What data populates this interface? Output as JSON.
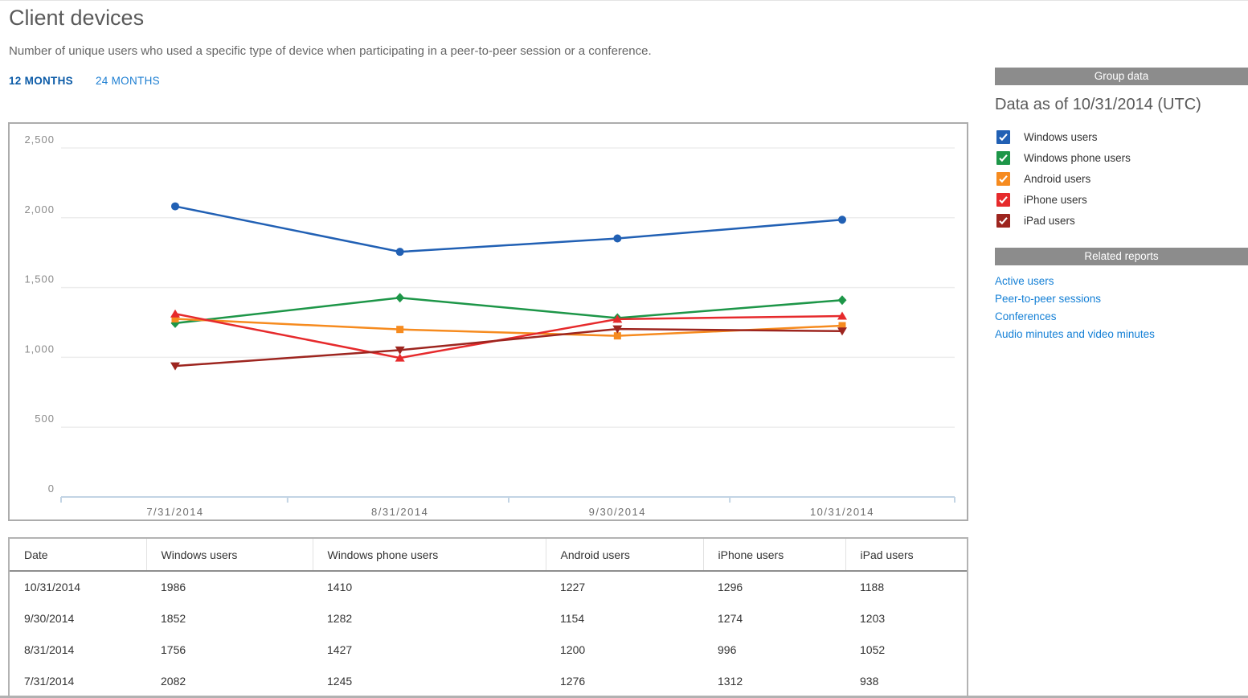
{
  "page": {
    "title": "Client devices",
    "subtitle": "Number of unique users who used a specific type of device when participating in a peer-to-peer session or a conference.",
    "tabs": [
      {
        "label": "12 MONTHS",
        "active": true
      },
      {
        "label": "24 MONTHS",
        "active": false
      }
    ]
  },
  "sidebar": {
    "group_data_header": "Group data",
    "data_as_of": "Data as of 10/31/2014 (UTC)",
    "legend": [
      {
        "label": "Windows users",
        "color": "#2160b4",
        "checked": true
      },
      {
        "label": "Windows phone users",
        "color": "#1d9648",
        "checked": true
      },
      {
        "label": "Android users",
        "color": "#f68b1f",
        "checked": true
      },
      {
        "label": "iPhone users",
        "color": "#e62a2c",
        "checked": true
      },
      {
        "label": "iPad users",
        "color": "#9d251f",
        "checked": true
      }
    ],
    "related_reports_header": "Related reports",
    "related_reports": [
      "Active users",
      "Peer-to-peer sessions",
      "Conferences",
      "Audio minutes and video minutes"
    ]
  },
  "chart_data": {
    "type": "line",
    "title": "Client devices",
    "x": [
      "7/31/2014",
      "8/31/2014",
      "9/30/2014",
      "10/31/2014"
    ],
    "x_day_offsets": [
      0,
      31,
      61,
      92
    ],
    "series": [
      {
        "name": "Windows users",
        "color": "#2160b4",
        "marker": "circle",
        "values": [
          2082,
          1756,
          1852,
          1986
        ]
      },
      {
        "name": "Windows phone users",
        "color": "#1d9648",
        "marker": "diamond",
        "values": [
          1245,
          1427,
          1282,
          1410
        ]
      },
      {
        "name": "Android users",
        "color": "#f68b1f",
        "marker": "square",
        "values": [
          1276,
          1200,
          1154,
          1227
        ]
      },
      {
        "name": "iPhone users",
        "color": "#e62a2c",
        "marker": "triangle-up",
        "values": [
          1312,
          996,
          1274,
          1296
        ]
      },
      {
        "name": "iPad users",
        "color": "#9d251f",
        "marker": "triangle-down",
        "values": [
          938,
          1052,
          1203,
          1188
        ]
      }
    ],
    "ylim": [
      0,
      2500
    ],
    "y_ticks": [
      0,
      500,
      1000,
      1500,
      2000,
      2500
    ],
    "y_tick_labels": [
      "0",
      "500",
      "1,000",
      "1,500",
      "2,000",
      "2,500"
    ],
    "grid": true,
    "legend_position": "right-panel"
  },
  "table": {
    "columns": [
      "Date",
      "Windows users",
      "Windows phone users",
      "Android users",
      "iPhone users",
      "iPad users"
    ],
    "rows": [
      [
        "10/31/2014",
        "1986",
        "1410",
        "1227",
        "1296",
        "1188"
      ],
      [
        "9/30/2014",
        "1852",
        "1282",
        "1154",
        "1274",
        "1203"
      ],
      [
        "8/31/2014",
        "1756",
        "1427",
        "1200",
        "996",
        "1052"
      ],
      [
        "7/31/2014",
        "2082",
        "1245",
        "1276",
        "1312",
        "938"
      ]
    ]
  },
  "colors": {
    "header_bar": "#8c8c8c",
    "tab_active": "#0d5ca8",
    "tab_inactive": "#1c7ed2",
    "link": "#1580d6",
    "axis_line": "#c2d4e4",
    "gridline": "#ededed",
    "axis_text": "#8a8a8a"
  }
}
